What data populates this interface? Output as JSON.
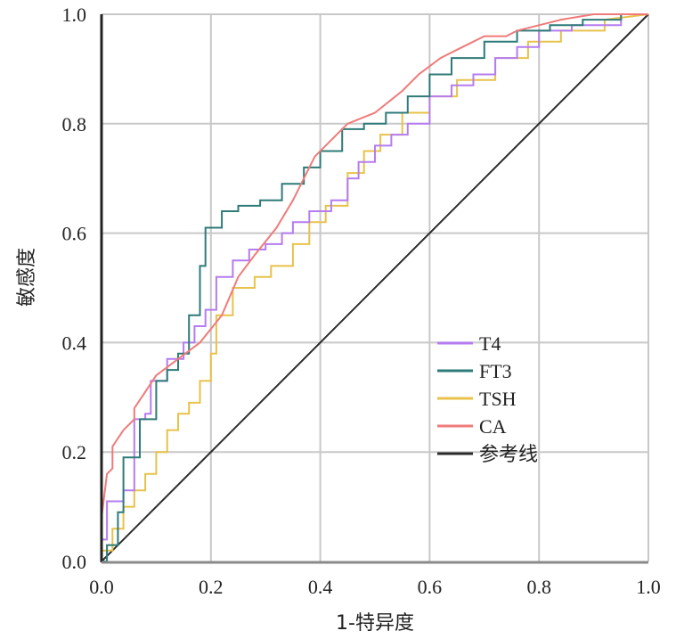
{
  "chart_data": {
    "type": "line",
    "title": "",
    "xlabel": "1-特异度",
    "ylabel": "敏感度",
    "xlim": [
      0.0,
      1.0
    ],
    "ylim": [
      0.0,
      1.0
    ],
    "grid": true,
    "legend_position": "center-right",
    "x_ticks": [
      "0.0",
      "0.2",
      "0.4",
      "0.6",
      "0.8",
      "1.0"
    ],
    "y_ticks": [
      "0.0",
      "0.2",
      "0.4",
      "0.6",
      "0.8",
      "1.0"
    ],
    "series": [
      {
        "name": "T4",
        "color": "#b57cf0",
        "x": [
          0.0,
          0.0,
          0.01,
          0.01,
          0.04,
          0.04,
          0.06,
          0.06,
          0.08,
          0.08,
          0.09,
          0.09,
          0.12,
          0.12,
          0.15,
          0.15,
          0.17,
          0.17,
          0.19,
          0.19,
          0.21,
          0.21,
          0.24,
          0.24,
          0.27,
          0.27,
          0.3,
          0.3,
          0.33,
          0.33,
          0.35,
          0.35,
          0.38,
          0.38,
          0.42,
          0.42,
          0.45,
          0.45,
          0.47,
          0.47,
          0.5,
          0.5,
          0.53,
          0.53,
          0.56,
          0.56,
          0.6,
          0.6,
          0.64,
          0.64,
          0.68,
          0.68,
          0.72,
          0.72,
          0.76,
          0.76,
          0.8,
          0.8,
          0.86,
          0.86,
          0.95,
          0.95,
          1.0
        ],
        "y": [
          0.0,
          0.04,
          0.04,
          0.11,
          0.11,
          0.13,
          0.13,
          0.26,
          0.26,
          0.27,
          0.27,
          0.33,
          0.33,
          0.37,
          0.37,
          0.4,
          0.4,
          0.43,
          0.43,
          0.46,
          0.46,
          0.52,
          0.52,
          0.55,
          0.55,
          0.57,
          0.57,
          0.58,
          0.58,
          0.6,
          0.6,
          0.62,
          0.62,
          0.64,
          0.64,
          0.66,
          0.66,
          0.7,
          0.7,
          0.73,
          0.73,
          0.76,
          0.76,
          0.78,
          0.78,
          0.8,
          0.8,
          0.85,
          0.85,
          0.87,
          0.87,
          0.89,
          0.89,
          0.92,
          0.92,
          0.94,
          0.94,
          0.97,
          0.97,
          0.98,
          0.98,
          1.0,
          1.0
        ]
      },
      {
        "name": "FT3",
        "color": "#2e7b78",
        "x": [
          0.0,
          0.01,
          0.01,
          0.03,
          0.03,
          0.04,
          0.04,
          0.07,
          0.07,
          0.1,
          0.1,
          0.12,
          0.12,
          0.14,
          0.14,
          0.16,
          0.16,
          0.18,
          0.18,
          0.19,
          0.19,
          0.22,
          0.22,
          0.25,
          0.25,
          0.29,
          0.29,
          0.33,
          0.33,
          0.37,
          0.37,
          0.4,
          0.4,
          0.44,
          0.44,
          0.48,
          0.48,
          0.52,
          0.52,
          0.56,
          0.56,
          0.6,
          0.6,
          0.64,
          0.64,
          0.7,
          0.7,
          0.76,
          0.76,
          0.82,
          0.82,
          0.88,
          0.88,
          0.95,
          0.95,
          1.0
        ],
        "y": [
          0.0,
          0.0,
          0.03,
          0.03,
          0.09,
          0.09,
          0.19,
          0.19,
          0.26,
          0.26,
          0.33,
          0.33,
          0.35,
          0.35,
          0.38,
          0.38,
          0.45,
          0.45,
          0.54,
          0.54,
          0.61,
          0.61,
          0.64,
          0.64,
          0.65,
          0.65,
          0.66,
          0.66,
          0.69,
          0.69,
          0.72,
          0.72,
          0.75,
          0.75,
          0.79,
          0.79,
          0.8,
          0.8,
          0.82,
          0.82,
          0.85,
          0.85,
          0.89,
          0.89,
          0.92,
          0.92,
          0.95,
          0.95,
          0.97,
          0.97,
          0.98,
          0.98,
          0.99,
          0.99,
          1.0,
          1.0
        ]
      },
      {
        "name": "TSH",
        "color": "#e8c24a",
        "x": [
          0.0,
          0.0,
          0.02,
          0.02,
          0.04,
          0.04,
          0.06,
          0.06,
          0.08,
          0.08,
          0.1,
          0.1,
          0.12,
          0.12,
          0.14,
          0.14,
          0.16,
          0.16,
          0.18,
          0.18,
          0.2,
          0.2,
          0.21,
          0.21,
          0.24,
          0.24,
          0.28,
          0.28,
          0.31,
          0.31,
          0.35,
          0.35,
          0.38,
          0.38,
          0.41,
          0.41,
          0.45,
          0.45,
          0.48,
          0.48,
          0.51,
          0.51,
          0.55,
          0.55,
          0.6,
          0.6,
          0.65,
          0.65,
          0.72,
          0.72,
          0.78,
          0.78,
          0.84,
          0.84,
          0.92,
          0.92,
          1.0
        ],
        "y": [
          0.0,
          0.02,
          0.02,
          0.06,
          0.06,
          0.1,
          0.1,
          0.13,
          0.13,
          0.16,
          0.16,
          0.2,
          0.2,
          0.24,
          0.24,
          0.27,
          0.27,
          0.29,
          0.29,
          0.33,
          0.33,
          0.38,
          0.38,
          0.45,
          0.45,
          0.5,
          0.5,
          0.52,
          0.52,
          0.54,
          0.54,
          0.58,
          0.58,
          0.62,
          0.62,
          0.65,
          0.65,
          0.71,
          0.71,
          0.75,
          0.75,
          0.78,
          0.78,
          0.82,
          0.82,
          0.85,
          0.85,
          0.88,
          0.88,
          0.92,
          0.92,
          0.95,
          0.95,
          0.97,
          0.97,
          0.99,
          1.0
        ]
      },
      {
        "name": "CA",
        "color": "#f07a7a",
        "x": [
          0.0,
          0.0,
          0.01,
          0.02,
          0.02,
          0.04,
          0.06,
          0.06,
          0.08,
          0.1,
          0.14,
          0.18,
          0.22,
          0.25,
          0.28,
          0.32,
          0.35,
          0.37,
          0.39,
          0.42,
          0.45,
          0.5,
          0.55,
          0.58,
          0.62,
          0.66,
          0.7,
          0.74,
          0.76,
          0.8,
          0.84,
          0.9,
          1.0
        ],
        "y": [
          0.0,
          0.08,
          0.16,
          0.17,
          0.21,
          0.24,
          0.26,
          0.28,
          0.31,
          0.34,
          0.37,
          0.4,
          0.45,
          0.52,
          0.56,
          0.61,
          0.66,
          0.7,
          0.74,
          0.77,
          0.8,
          0.82,
          0.86,
          0.89,
          0.92,
          0.94,
          0.96,
          0.96,
          0.97,
          0.98,
          0.99,
          1.0,
          1.0
        ]
      },
      {
        "name": "参考线",
        "color": "#2b2b2b",
        "x": [
          0.0,
          1.0
        ],
        "y": [
          0.0,
          1.0
        ]
      }
    ]
  }
}
